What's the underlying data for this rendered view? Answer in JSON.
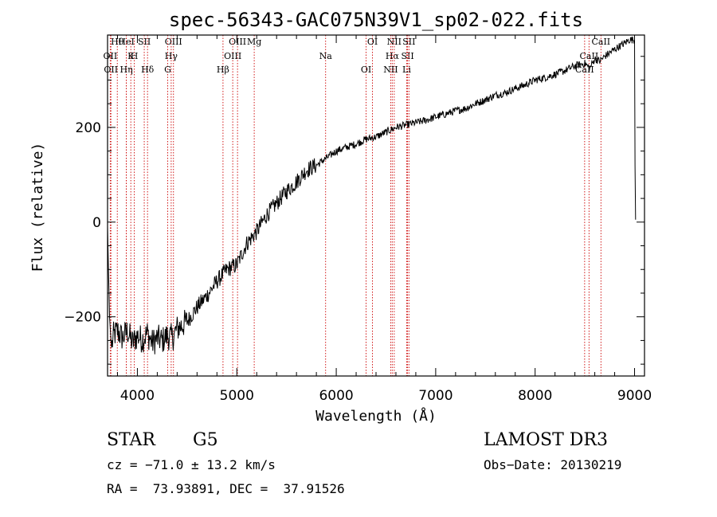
{
  "chart_data": {
    "type": "line",
    "title": "spec-56343-GAC075N39V1_sp02-022.fits",
    "xlabel": "Wavelength (Å)",
    "ylabel": "Flux (relative)",
    "xlim": [
      3700,
      9100
    ],
    "ylim": [
      -325,
      395
    ],
    "xticks": [
      4000,
      5000,
      6000,
      7000,
      8000,
      9000
    ],
    "yticks": [
      -200,
      0,
      200
    ],
    "series": [
      {
        "name": "spectrum",
        "x": [
          3700,
          3720,
          3740,
          3760,
          3800,
          3850,
          3900,
          3950,
          4000,
          4050,
          4100,
          4150,
          4200,
          4250,
          4300,
          4350,
          4400,
          4500,
          4600,
          4700,
          4800,
          4900,
          5000,
          5100,
          5200,
          5300,
          5400,
          5500,
          5600,
          5700,
          5800,
          5900,
          6000,
          6100,
          6200,
          6300,
          6400,
          6500,
          6600,
          6700,
          6800,
          6900,
          7000,
          7100,
          7200,
          7300,
          7400,
          7500,
          7600,
          7700,
          7800,
          7900,
          8000,
          8100,
          8200,
          8300,
          8400,
          8500,
          8550,
          8600,
          8650,
          8700,
          8800,
          8900,
          8950,
          9000,
          9005,
          9010
        ],
        "y": [
          -10,
          -200,
          -265,
          -240,
          -230,
          -245,
          -230,
          -255,
          -240,
          -248,
          -235,
          -255,
          -245,
          -250,
          -240,
          -245,
          -225,
          -210,
          -180,
          -155,
          -125,
          -100,
          -90,
          -45,
          -20,
          15,
          40,
          65,
          85,
          110,
          120,
          135,
          150,
          158,
          165,
          175,
          180,
          190,
          200,
          205,
          210,
          215,
          222,
          228,
          235,
          240,
          250,
          258,
          268,
          273,
          282,
          290,
          300,
          305,
          312,
          320,
          330,
          335,
          325,
          345,
          340,
          350,
          365,
          378,
          385,
          385,
          120,
          5
        ]
      }
    ],
    "spectral_lines": [
      {
        "name": "Hθ",
        "x": 3798
      },
      {
        "name": "OII",
        "x": 3727
      },
      {
        "name": "OII",
        "x": 3734
      },
      {
        "name": "HeI",
        "x": 3889
      },
      {
        "name": "K",
        "x": 3934
      },
      {
        "name": "Hη",
        "x": 3889
      },
      {
        "name": "SII",
        "x": 4069
      },
      {
        "name": "H",
        "x": 3969
      },
      {
        "name": "Hδ",
        "x": 4102
      },
      {
        "name": "OIII",
        "x": 4363
      },
      {
        "name": "Hγ",
        "x": 4340
      },
      {
        "name": "G",
        "x": 4305
      },
      {
        "name": "OIII",
        "x": 5007
      },
      {
        "name": "OIII",
        "x": 4959
      },
      {
        "name": "Hβ",
        "x": 4861
      },
      {
        "name": "Mg",
        "x": 5175
      },
      {
        "name": "Na",
        "x": 5893
      },
      {
        "name": "OI",
        "x": 6300
      },
      {
        "name": "OI",
        "x": 6364
      },
      {
        "name": "Hα",
        "x": 6563
      },
      {
        "name": "NII",
        "x": 6548
      },
      {
        "name": "NII",
        "x": 6583
      },
      {
        "name": "SII",
        "x": 6717
      },
      {
        "name": "Li",
        "x": 6708
      },
      {
        "name": "SII",
        "x": 6731
      },
      {
        "name": "CaII",
        "x": 8542
      },
      {
        "name": "CaII",
        "x": 8498
      },
      {
        "name": "CaII",
        "x": 8662
      }
    ],
    "grid": false,
    "legend": "none"
  },
  "info": {
    "class": "STAR",
    "subclass": "G5",
    "survey": "LAMOST DR3",
    "cz": "cz = −71.0 ± 13.2 km/s",
    "obs_date": "Obs−Date: 20130219",
    "radec": "RA =  73.93891, DEC =  37.91526"
  },
  "colors": {
    "axis": "#000000",
    "line_marker": "#cc0000",
    "spectrum": "#000000"
  }
}
